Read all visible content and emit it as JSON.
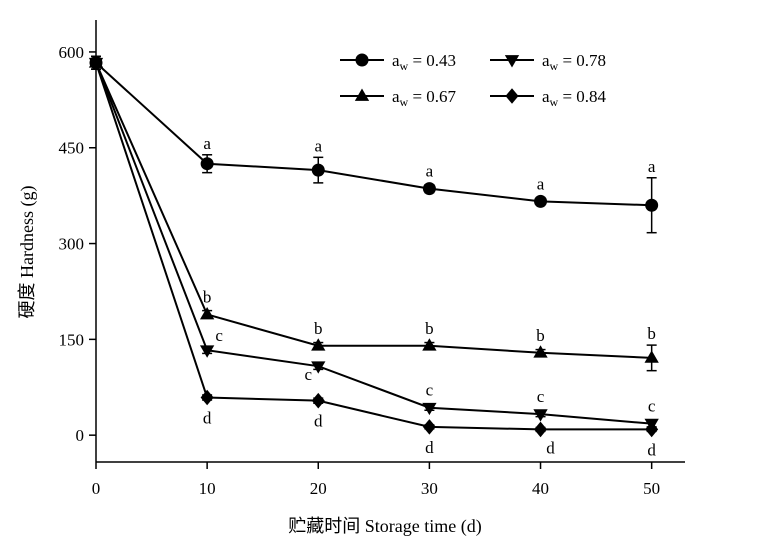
{
  "chart_data": {
    "type": "line",
    "xlabel": "贮藏时间 Storage time (d)",
    "ylabel": "硬度 Hardness (g)",
    "xlim": [
      0,
      53
    ],
    "ylim": [
      -42,
      650
    ],
    "xticks": [
      0,
      10,
      20,
      30,
      40,
      50
    ],
    "yticks": [
      0,
      150,
      300,
      450,
      600
    ],
    "grid": false,
    "legend_position": "top-right",
    "series": [
      {
        "name": "aw = 0.43",
        "name_main": "a",
        "name_sub": "w",
        "name_value": " = 0.43",
        "marker": "circle",
        "x": [
          0,
          10,
          20,
          30,
          40,
          50
        ],
        "y": [
          583,
          425,
          415,
          386,
          366,
          360
        ],
        "error": [
          10,
          14,
          20,
          6,
          5,
          43
        ],
        "letters": [
          "",
          "a",
          "a",
          "a",
          "a",
          "a"
        ],
        "letter_pos": [
          "",
          "above",
          "above",
          "above",
          "above",
          "above"
        ]
      },
      {
        "name": "aw = 0.67",
        "name_main": "a",
        "name_sub": "w",
        "name_value": " = 0.67",
        "marker": "triangle-up",
        "x": [
          0,
          10,
          20,
          30,
          40,
          50
        ],
        "y": [
          583,
          189,
          140,
          140,
          129,
          121
        ],
        "error": [
          10,
          6,
          5,
          5,
          5,
          20
        ],
        "letters": [
          "",
          "b",
          "b",
          "b",
          "b",
          "b"
        ],
        "letter_pos": [
          "",
          "above",
          "above",
          "above",
          "above",
          "above"
        ]
      },
      {
        "name": "aw = 0.78",
        "name_main": "a",
        "name_sub": "w",
        "name_value": " = 0.78",
        "marker": "triangle-down",
        "x": [
          0,
          10,
          20,
          30,
          40,
          50
        ],
        "y": [
          583,
          133,
          108,
          43,
          33,
          18
        ],
        "error": [
          10,
          5,
          5,
          4,
          4,
          5
        ],
        "letters": [
          "",
          "c",
          "c",
          "c",
          "c",
          "c"
        ],
        "letter_pos": [
          "",
          "above-right",
          "below-left",
          "above",
          "above",
          "above"
        ]
      },
      {
        "name": "aw = 0.84",
        "name_main": "a",
        "name_sub": "w",
        "name_value": " = 0.84",
        "marker": "diamond",
        "x": [
          0,
          10,
          20,
          30,
          40,
          50
        ],
        "y": [
          583,
          59,
          54,
          13,
          9,
          9
        ],
        "error": [
          10,
          4,
          4,
          3,
          3,
          3
        ],
        "letters": [
          "",
          "d",
          "d",
          "d",
          "d",
          "d"
        ],
        "letter_pos": [
          "",
          "below",
          "below",
          "below",
          "below-right",
          "below"
        ]
      }
    ]
  }
}
